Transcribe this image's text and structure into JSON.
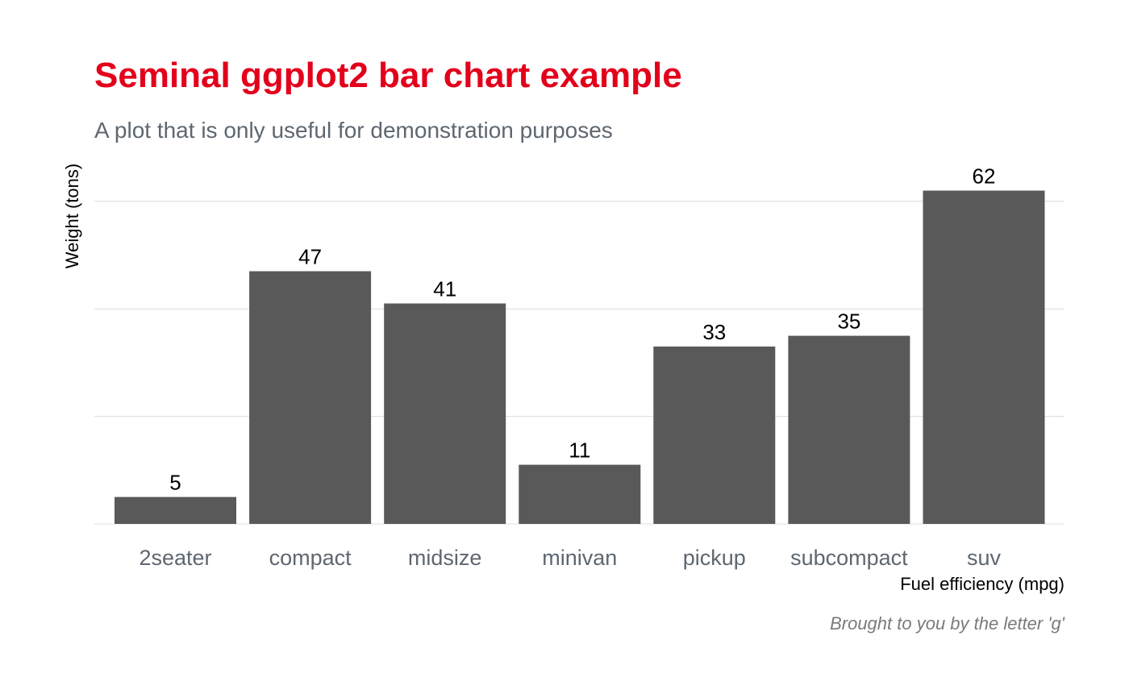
{
  "chart_data": {
    "type": "bar",
    "title": "Seminal ggplot2 bar chart example",
    "subtitle": "A plot that is only useful for demonstration purposes",
    "xlabel": "Fuel efficiency (mpg)",
    "ylabel": "Weight (tons)",
    "caption": "Brought to you by the letter 'g'",
    "categories": [
      "2seater",
      "compact",
      "midsize",
      "minivan",
      "pickup",
      "subcompact",
      "suv"
    ],
    "values": [
      5,
      47,
      41,
      11,
      33,
      35,
      62
    ],
    "ylim": [
      0,
      62
    ],
    "y_gridlines": [
      0,
      20,
      40,
      60
    ],
    "y_tick_labels_shown": false,
    "grid": "horizontal-major",
    "legend": "none",
    "data_labels": true
  },
  "colors": {
    "title": "#e3001b",
    "subtitle": "#5e6770",
    "bar": "#595959",
    "gridline": "#dcdcdc",
    "tick_label": "#5e6770",
    "axis_title": "#000000",
    "data_label": "#000000",
    "caption": "#7a7a7a",
    "background": "#ffffff"
  }
}
